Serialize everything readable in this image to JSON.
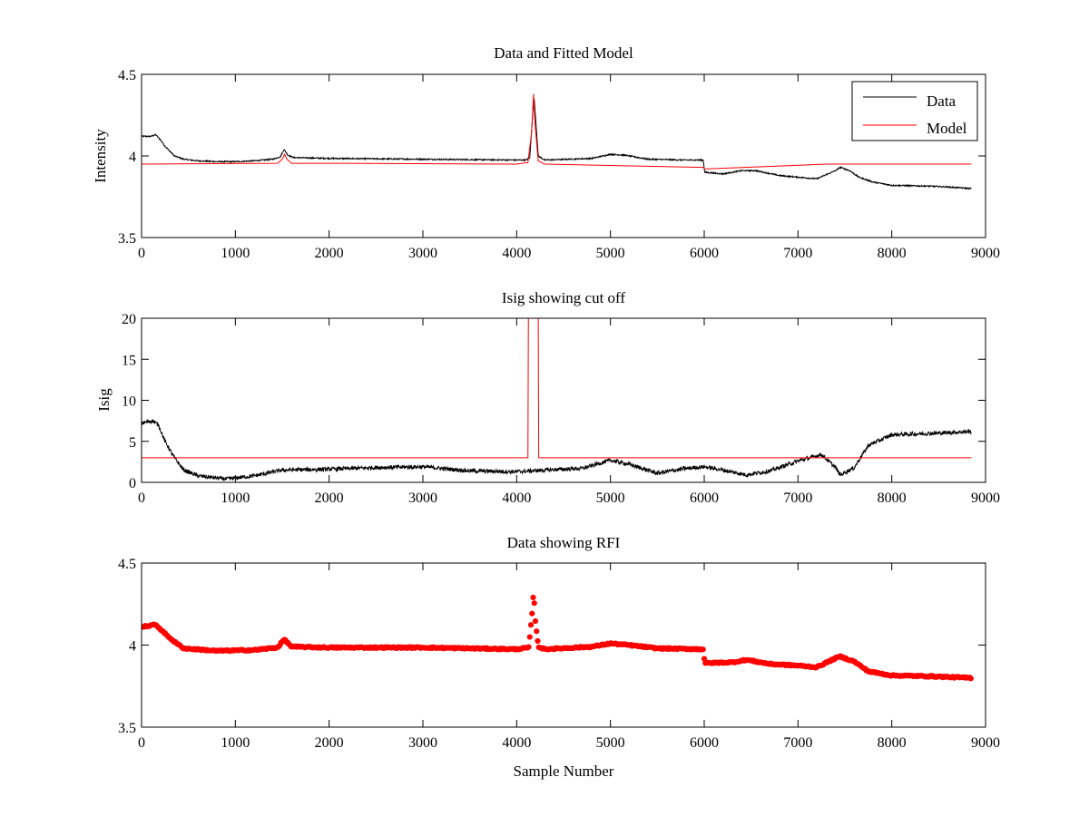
{
  "figure": {
    "background": "#ffffff",
    "axes_color": "#000000"
  },
  "chart_data": [
    {
      "type": "line",
      "title": "Data and Fitted Model",
      "xlabel": "",
      "ylabel": "Intensity",
      "xlim": [
        0,
        9000
      ],
      "ylim": [
        3.5,
        4.5
      ],
      "xticks": [
        0,
        1000,
        2000,
        3000,
        4000,
        5000,
        6000,
        7000,
        8000,
        9000
      ],
      "xtick_labels": [
        "0",
        "1000",
        "2000",
        "3000",
        "4000",
        "5000",
        "6000",
        "7000",
        "8000",
        "9000"
      ],
      "yticks": [
        3.5,
        4,
        4.5
      ],
      "ytick_labels": [
        "3.5",
        "4",
        "4.5"
      ],
      "grid": false,
      "legend": {
        "position": "top-right",
        "entries": [
          "Data",
          "Model"
        ]
      },
      "series": [
        {
          "name": "Data",
          "color": "#000000",
          "style": "line",
          "noise": 0.004,
          "points": [
            [
              0,
              4.12
            ],
            [
              100,
              4.12
            ],
            [
              150,
              4.13
            ],
            [
              200,
              4.1
            ],
            [
              250,
              4.06
            ],
            [
              300,
              4.03
            ],
            [
              350,
              4.0
            ],
            [
              450,
              3.98
            ],
            [
              600,
              3.97
            ],
            [
              800,
              3.965
            ],
            [
              1000,
              3.965
            ],
            [
              1200,
              3.97
            ],
            [
              1400,
              3.98
            ],
            [
              1480,
              3.995
            ],
            [
              1520,
              4.04
            ],
            [
              1560,
              4.005
            ],
            [
              1620,
              3.99
            ],
            [
              2000,
              3.985
            ],
            [
              3000,
              3.98
            ],
            [
              4000,
              3.975
            ],
            [
              4100,
              3.975
            ],
            [
              4140,
              3.99
            ],
            [
              4170,
              4.25
            ],
            [
              4185,
              4.36
            ],
            [
              4200,
              4.25
            ],
            [
              4230,
              4.0
            ],
            [
              4300,
              3.975
            ],
            [
              4800,
              3.985
            ],
            [
              5000,
              4.01
            ],
            [
              5150,
              4.005
            ],
            [
              5400,
              3.98
            ],
            [
              5800,
              3.975
            ],
            [
              5990,
              3.975
            ],
            [
              6005,
              3.9
            ],
            [
              6200,
              3.89
            ],
            [
              6400,
              3.91
            ],
            [
              6550,
              3.91
            ],
            [
              6800,
              3.88
            ],
            [
              7000,
              3.87
            ],
            [
              7200,
              3.86
            ],
            [
              7400,
              3.91
            ],
            [
              7450,
              3.93
            ],
            [
              7550,
              3.91
            ],
            [
              7650,
              3.87
            ],
            [
              7800,
              3.84
            ],
            [
              8000,
              3.82
            ],
            [
              8400,
              3.815
            ],
            [
              8600,
              3.81
            ],
            [
              8850,
              3.8
            ]
          ]
        },
        {
          "name": "Model",
          "color": "#ff0000",
          "style": "line",
          "noise": 0,
          "points": [
            [
              0,
              3.95
            ],
            [
              1450,
              3.955
            ],
            [
              1500,
              3.98
            ],
            [
              1525,
              4.01
            ],
            [
              1550,
              3.98
            ],
            [
              1600,
              3.955
            ],
            [
              2000,
              3.955
            ],
            [
              4000,
              3.95
            ],
            [
              4120,
              3.96
            ],
            [
              4160,
              4.15
            ],
            [
              4180,
              4.38
            ],
            [
              4195,
              4.2
            ],
            [
              4230,
              3.97
            ],
            [
              4300,
              3.95
            ],
            [
              5990,
              3.93
            ],
            [
              6005,
              3.92
            ],
            [
              7300,
              3.95
            ],
            [
              8850,
              3.95
            ]
          ]
        }
      ]
    },
    {
      "type": "line",
      "title": "Isig showing cut off",
      "xlabel": "",
      "ylabel": "Isig",
      "xlim": [
        0,
        9000
      ],
      "ylim": [
        0,
        20
      ],
      "xticks": [
        0,
        1000,
        2000,
        3000,
        4000,
        5000,
        6000,
        7000,
        8000,
        9000
      ],
      "xtick_labels": [
        "0",
        "1000",
        "2000",
        "3000",
        "4000",
        "5000",
        "6000",
        "7000",
        "8000",
        "9000"
      ],
      "yticks": [
        0,
        5,
        10,
        15,
        20
      ],
      "ytick_labels": [
        "0",
        "5",
        "10",
        "15",
        "20"
      ],
      "grid": false,
      "series": [
        {
          "color": "#000000",
          "style": "line",
          "noise": 0.25,
          "points": [
            [
              0,
              7.2
            ],
            [
              120,
              7.5
            ],
            [
              180,
              7.0
            ],
            [
              250,
              5.0
            ],
            [
              350,
              3.0
            ],
            [
              450,
              1.5
            ],
            [
              600,
              0.8
            ],
            [
              900,
              0.4
            ],
            [
              1200,
              0.8
            ],
            [
              1500,
              1.5
            ],
            [
              2000,
              1.6
            ],
            [
              2500,
              1.8
            ],
            [
              3000,
              1.9
            ],
            [
              3500,
              1.4
            ],
            [
              4000,
              1.3
            ],
            [
              4300,
              1.5
            ],
            [
              4700,
              1.7
            ],
            [
              5000,
              2.7
            ],
            [
              5200,
              2.2
            ],
            [
              5500,
              1.1
            ],
            [
              5800,
              1.7
            ],
            [
              6000,
              1.9
            ],
            [
              6200,
              1.5
            ],
            [
              6450,
              0.9
            ],
            [
              6700,
              1.4
            ],
            [
              7000,
              2.6
            ],
            [
              7250,
              3.4
            ],
            [
              7400,
              1.8
            ],
            [
              7450,
              0.9
            ],
            [
              7600,
              1.8
            ],
            [
              7750,
              4.5
            ],
            [
              8000,
              5.8
            ],
            [
              8500,
              6.0
            ],
            [
              8850,
              6.2
            ]
          ]
        },
        {
          "color": "#ff0000",
          "style": "line",
          "noise": 0,
          "points": [
            [
              0,
              3
            ],
            [
              4120,
              3
            ],
            [
              4125,
              20
            ],
            [
              4230,
              20
            ],
            [
              4235,
              3
            ],
            [
              8850,
              3
            ]
          ]
        }
      ]
    },
    {
      "type": "scatter",
      "title": "Data showing RFI",
      "xlabel": "Sample Number",
      "ylabel": "",
      "xlim": [
        0,
        9000
      ],
      "ylim": [
        3.5,
        4.5
      ],
      "xticks": [
        0,
        1000,
        2000,
        3000,
        4000,
        5000,
        6000,
        7000,
        8000,
        9000
      ],
      "xtick_labels": [
        "0",
        "1000",
        "2000",
        "3000",
        "4000",
        "5000",
        "6000",
        "7000",
        "8000",
        "9000"
      ],
      "yticks": [
        3.5,
        4,
        4.5
      ],
      "ytick_labels": [
        "3.5",
        "4",
        "4.5"
      ],
      "grid": false,
      "series": [
        {
          "color": "#ff0000",
          "style": "markers",
          "noise": 0.004,
          "points": [
            [
              0,
              4.11
            ],
            [
              150,
              4.125
            ],
            [
              250,
              4.07
            ],
            [
              350,
              4.02
            ],
            [
              450,
              3.98
            ],
            [
              800,
              3.965
            ],
            [
              1200,
              3.97
            ],
            [
              1450,
              3.985
            ],
            [
              1520,
              4.035
            ],
            [
              1600,
              3.99
            ],
            [
              2000,
              3.985
            ],
            [
              3000,
              3.985
            ],
            [
              4000,
              3.975
            ],
            [
              4130,
              3.985
            ],
            [
              4165,
              4.2
            ],
            [
              4180,
              4.32
            ],
            [
              4200,
              4.15
            ],
            [
              4230,
              3.99
            ],
            [
              4300,
              3.975
            ],
            [
              4800,
              3.99
            ],
            [
              5000,
              4.01
            ],
            [
              5200,
              4.0
            ],
            [
              5500,
              3.98
            ],
            [
              5990,
              3.975
            ],
            [
              6005,
              3.89
            ],
            [
              6300,
              3.895
            ],
            [
              6450,
              3.91
            ],
            [
              6700,
              3.885
            ],
            [
              7000,
              3.875
            ],
            [
              7200,
              3.865
            ],
            [
              7400,
              3.92
            ],
            [
              7450,
              3.93
            ],
            [
              7600,
              3.9
            ],
            [
              7750,
              3.84
            ],
            [
              8000,
              3.815
            ],
            [
              8400,
              3.81
            ],
            [
              8850,
              3.8
            ]
          ]
        }
      ]
    }
  ]
}
